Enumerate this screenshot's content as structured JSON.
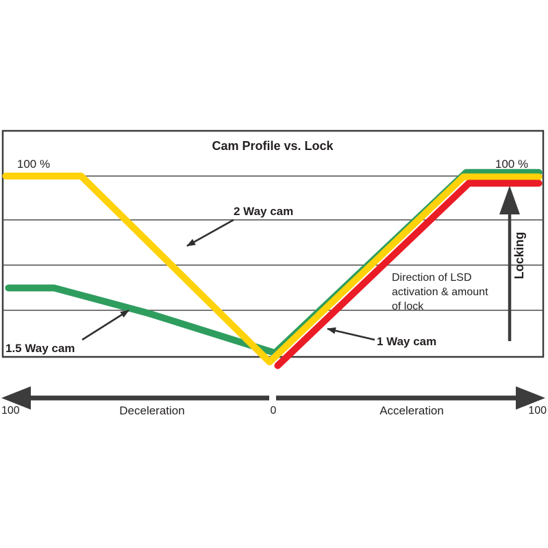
{
  "chart": {
    "title": "Cam Profile vs. Lock",
    "top_left_pct_label": "100 %",
    "top_right_pct_label": "100 %",
    "locking_label": "Locking",
    "note": {
      "line1": "Direction of LSD",
      "line2": "activation & amount",
      "line3": "of lock"
    },
    "series_labels": {
      "two_way": "2 Way cam",
      "one_five_way": "1.5 Way cam",
      "one_way": "1 Way cam"
    },
    "x_axis": {
      "left_value": "100",
      "center_value": "0",
      "right_value": "100",
      "left_word": "Deceleration",
      "right_word": "Acceleration"
    }
  },
  "colors": {
    "two_way_yellow": "#FFD20A",
    "one_five_way_green": "#2E9D5E",
    "one_way_red": "#EA1C25",
    "arrow_dark": "#3C3C3C",
    "text_dark": "#231F20"
  },
  "chart_data": {
    "type": "line",
    "title": "Cam Profile vs. Lock",
    "x_axis_note": "torque: 100 (Deceleration) .. 0 .. 100 (Acceleration)",
    "x_range": [
      -100,
      100
    ],
    "y_range": [
      0,
      100
    ],
    "y_unit": "% lock",
    "grid": "horizontal only, 5 rows",
    "legend_position": "inline annotations with arrows",
    "series": [
      {
        "name": "1.5 Way cam",
        "color": "#2E9D5E",
        "points": [
          [
            -98,
            38
          ],
          [
            -81,
            38
          ],
          [
            -46,
            24
          ],
          [
            1,
            2
          ],
          [
            72,
            102
          ],
          [
            99,
            102
          ]
        ]
      },
      {
        "name": "2 Way cam",
        "color": "#FFD20A",
        "points": [
          [
            -99,
            100
          ],
          [
            -71,
            100
          ],
          [
            -1,
            -3
          ],
          [
            71,
            99.5
          ],
          [
            99,
            99.5
          ]
        ]
      },
      {
        "name": "1 Way cam",
        "color": "#EA1C25",
        "points": [
          [
            2,
            -5
          ],
          [
            73,
            96
          ],
          [
            99,
            96
          ]
        ]
      }
    ],
    "annotations": [
      "Direction of LSD activation & amount of lock",
      "Locking (vertical up arrow at right side)",
      "100 % reference at top of both deceleration and acceleration sides"
    ]
  }
}
